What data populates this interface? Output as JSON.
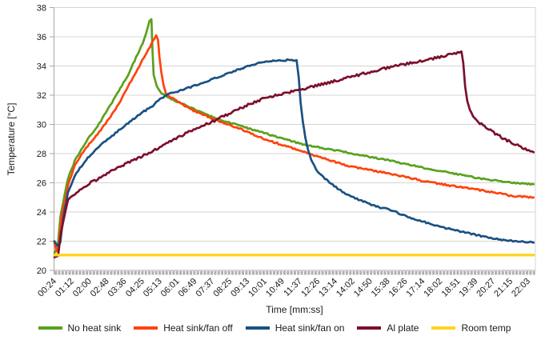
{
  "chart_data": {
    "type": "line",
    "title": "",
    "xlabel": "Time [mm:ss]",
    "ylabel": "Temperature [°C]",
    "ylim": [
      20,
      38
    ],
    "yticks": [
      20,
      22,
      24,
      26,
      28,
      30,
      32,
      34,
      36,
      38
    ],
    "x_tick_labels": [
      "00:24",
      "01:12",
      "02:00",
      "02:48",
      "03:36",
      "04:25",
      "05:13",
      "06:01",
      "06:49",
      "07:37",
      "08:25",
      "09:13",
      "10:01",
      "10:49",
      "11:37",
      "12:26",
      "13:14",
      "14:02",
      "14:50",
      "15:38",
      "16:26",
      "17:14",
      "18:02",
      "18:51",
      "19:39",
      "20:27",
      "21:15",
      "22:03"
    ],
    "grid": "horizontal",
    "legend_position": "bottom",
    "colors": {
      "grid": "#d4d4d4",
      "axis": "#a6a6a6",
      "text": "#1a1a1a"
    },
    "series": [
      {
        "name": "No heat sink",
        "color": "#5AA11E",
        "points": [
          [
            24,
            21.2
          ],
          [
            33,
            21.6
          ],
          [
            40,
            23.6
          ],
          [
            52,
            25.2
          ],
          [
            61,
            26.3
          ],
          [
            80,
            27.5
          ],
          [
            94,
            28.1
          ],
          [
            115,
            29.0
          ],
          [
            138,
            29.7
          ],
          [
            160,
            30.6
          ],
          [
            182,
            31.5
          ],
          [
            205,
            32.5
          ],
          [
            226,
            33.4
          ],
          [
            248,
            34.6
          ],
          [
            270,
            35.8
          ],
          [
            285,
            37.1
          ],
          [
            290,
            37.2
          ],
          [
            293,
            35.0
          ],
          [
            296,
            33.4
          ],
          [
            305,
            32.6
          ],
          [
            318,
            32.1
          ],
          [
            340,
            31.8
          ],
          [
            401,
            31.1
          ],
          [
            467,
            30.4
          ],
          [
            533,
            29.9
          ],
          [
            599,
            29.4
          ],
          [
            709,
            28.6
          ],
          [
            822,
            28.1
          ],
          [
            949,
            27.5
          ],
          [
            1060,
            26.9
          ],
          [
            1191,
            26.3
          ],
          [
            1280,
            26.0
          ],
          [
            1338,
            25.9
          ]
        ]
      },
      {
        "name": "Heat sink/fan off",
        "color": "#FF430D",
        "points": [
          [
            24,
            21.9
          ],
          [
            30,
            21.3
          ],
          [
            36,
            21.6
          ],
          [
            44,
            23.8
          ],
          [
            55,
            25.0
          ],
          [
            61,
            25.8
          ],
          [
            80,
            27.2
          ],
          [
            94,
            27.8
          ],
          [
            115,
            28.5
          ],
          [
            138,
            29.2
          ],
          [
            160,
            29.9
          ],
          [
            182,
            30.7
          ],
          [
            205,
            31.6
          ],
          [
            226,
            32.6
          ],
          [
            248,
            33.6
          ],
          [
            270,
            34.6
          ],
          [
            290,
            35.5
          ],
          [
            303,
            36.1
          ],
          [
            308,
            35.8
          ],
          [
            312,
            34.6
          ],
          [
            317,
            33.6
          ],
          [
            323,
            32.7
          ],
          [
            330,
            32.1
          ],
          [
            340,
            31.9
          ],
          [
            401,
            31.0
          ],
          [
            467,
            30.3
          ],
          [
            533,
            29.7
          ],
          [
            599,
            29.0
          ],
          [
            709,
            28.1
          ],
          [
            822,
            27.2
          ],
          [
            949,
            26.6
          ],
          [
            1060,
            26.0
          ],
          [
            1191,
            25.5
          ],
          [
            1280,
            25.1
          ],
          [
            1338,
            25.0
          ]
        ]
      },
      {
        "name": "Heat sink/fan on",
        "color": "#1A5182",
        "points": [
          [
            24,
            22.0
          ],
          [
            32,
            21.7
          ],
          [
            40,
            21.9
          ],
          [
            48,
            23.6
          ],
          [
            61,
            25.3
          ],
          [
            80,
            26.5
          ],
          [
            94,
            27.0
          ],
          [
            115,
            27.7
          ],
          [
            138,
            28.3
          ],
          [
            160,
            28.8
          ],
          [
            182,
            29.2
          ],
          [
            205,
            29.7
          ],
          [
            226,
            30.1
          ],
          [
            248,
            30.5
          ],
          [
            270,
            30.9
          ],
          [
            290,
            31.2
          ],
          [
            313,
            31.7
          ],
          [
            340,
            32.1
          ],
          [
            380,
            32.4
          ],
          [
            445,
            33.0
          ],
          [
            511,
            33.6
          ],
          [
            555,
            34.0
          ],
          [
            599,
            34.3
          ],
          [
            632,
            34.4
          ],
          [
            688,
            34.4
          ],
          [
            694,
            33.2
          ],
          [
            699,
            31.5
          ],
          [
            705,
            30.2
          ],
          [
            712,
            29.1
          ],
          [
            719,
            28.3
          ],
          [
            728,
            27.6
          ],
          [
            741,
            26.9
          ],
          [
            774,
            26.1
          ],
          [
            818,
            25.3
          ],
          [
            862,
            24.8
          ],
          [
            906,
            24.4
          ],
          [
            949,
            24.1
          ],
          [
            1012,
            23.5
          ],
          [
            1080,
            23.0
          ],
          [
            1150,
            22.6
          ],
          [
            1220,
            22.2
          ],
          [
            1290,
            22.0
          ],
          [
            1338,
            21.9
          ]
        ]
      },
      {
        "name": "Al plate",
        "color": "#7B102C",
        "points": [
          [
            24,
            20.9
          ],
          [
            34,
            21.0
          ],
          [
            42,
            22.6
          ],
          [
            52,
            23.8
          ],
          [
            61,
            24.8
          ],
          [
            80,
            25.2
          ],
          [
            94,
            25.5
          ],
          [
            115,
            25.9
          ],
          [
            138,
            26.2
          ],
          [
            160,
            26.5
          ],
          [
            182,
            26.8
          ],
          [
            205,
            27.1
          ],
          [
            226,
            27.4
          ],
          [
            248,
            27.6
          ],
          [
            270,
            27.9
          ],
          [
            313,
            28.4
          ],
          [
            340,
            28.8
          ],
          [
            401,
            29.6
          ],
          [
            467,
            30.3
          ],
          [
            533,
            31.1
          ],
          [
            599,
            31.8
          ],
          [
            687,
            32.3
          ],
          [
            796,
            33.0
          ],
          [
            906,
            33.7
          ],
          [
            1000,
            34.2
          ],
          [
            1080,
            34.6
          ],
          [
            1125,
            34.9
          ],
          [
            1140,
            35.0
          ],
          [
            1145,
            34.2
          ],
          [
            1150,
            32.6
          ],
          [
            1156,
            31.6
          ],
          [
            1163,
            31.0
          ],
          [
            1172,
            30.6
          ],
          [
            1191,
            30.1
          ],
          [
            1224,
            29.5
          ],
          [
            1257,
            29.0
          ],
          [
            1290,
            28.6
          ],
          [
            1315,
            28.3
          ],
          [
            1338,
            28.1
          ]
        ]
      },
      {
        "name": "Room temp",
        "color": "#FFD41F",
        "points": [
          [
            24,
            21.05
          ],
          [
            1338,
            21.05
          ]
        ]
      }
    ]
  }
}
